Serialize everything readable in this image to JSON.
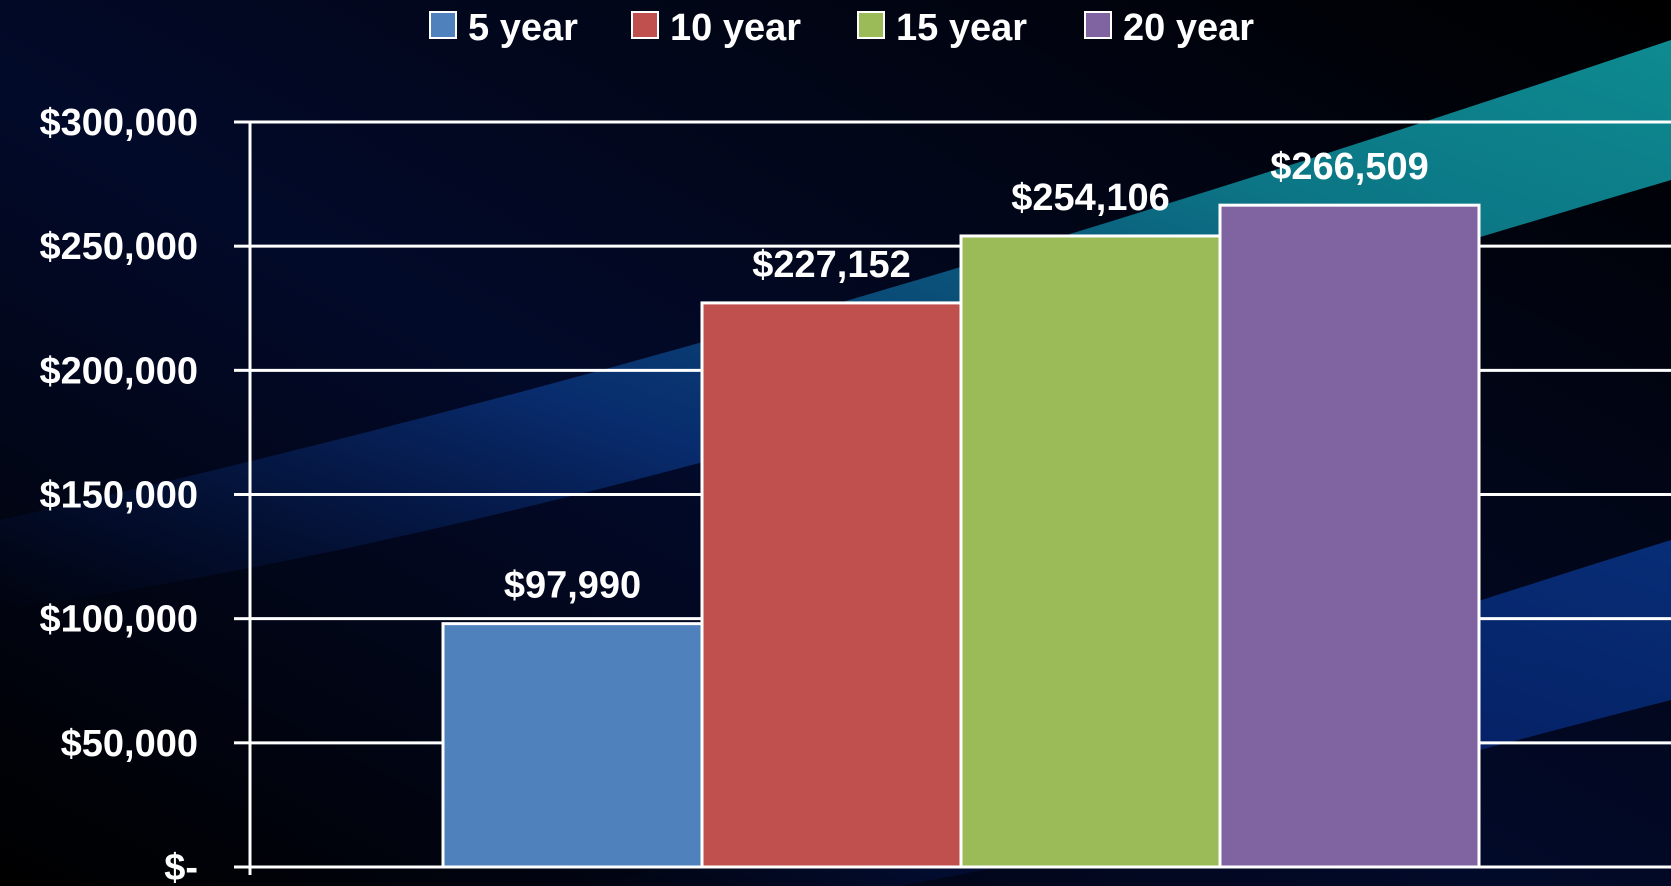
{
  "chart_data": {
    "type": "bar",
    "categories": [
      ""
    ],
    "series": [
      {
        "name": "5 year",
        "values": [
          97990
        ],
        "label": "$97,990",
        "color": "#4f81bd"
      },
      {
        "name": "10 year",
        "values": [
          227152
        ],
        "label": "$227,152",
        "color": "#c0504d"
      },
      {
        "name": "15 year",
        "values": [
          254106
        ],
        "label": "$254,106",
        "color": "#9bbb59"
      },
      {
        "name": "20 year",
        "values": [
          266509
        ],
        "label": "$266,509",
        "color": "#8064a2"
      }
    ],
    "ylim": [
      0,
      300000
    ],
    "yticks": [
      {
        "value": 0,
        "label": "$-"
      },
      {
        "value": 50000,
        "label": "$50,000"
      },
      {
        "value": 100000,
        "label": "$100,000"
      },
      {
        "value": 150000,
        "label": "$150,000"
      },
      {
        "value": 200000,
        "label": "$200,000"
      },
      {
        "value": 250000,
        "label": "$250,000"
      },
      {
        "value": 300000,
        "label": "$300,000"
      }
    ],
    "grid": true,
    "legend_position": "top-center",
    "title": "",
    "xlabel": "",
    "ylabel": ""
  },
  "colors": {
    "background": "#000000",
    "gridline": "#ffffff",
    "text": "#ffffff",
    "streak": "#0e8a9a"
  }
}
